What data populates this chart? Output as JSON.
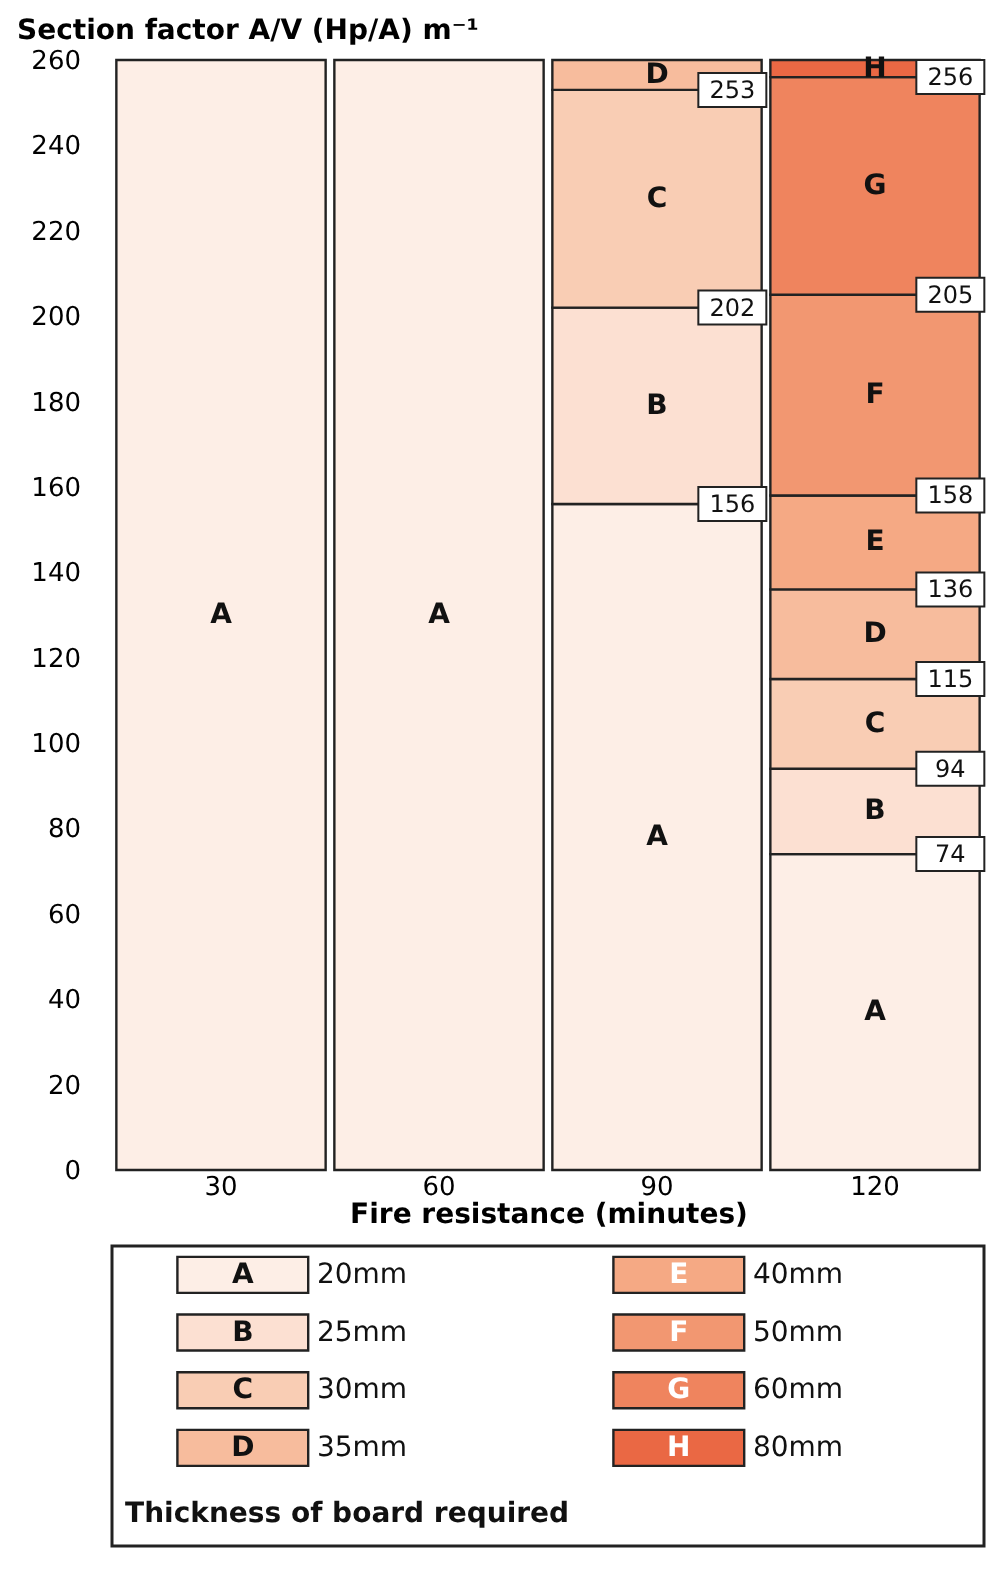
{
  "chart_data": {
    "type": "bar",
    "stacked": true,
    "xlabel": "Fire resistance (minutes)",
    "ylabel": "Section factor A/V (Hp/A) m⁻¹",
    "legend_title": "Thickness of board required",
    "legend": "bottom",
    "categories": [
      "30",
      "60",
      "90",
      "120"
    ],
    "series": [
      {
        "name": "20mm",
        "color": "#fdeee6",
        "values": [
          260,
          260,
          156,
          74
        ],
        "value_labels": [
          "A",
          "A",
          "A",
          "A"
        ]
      },
      {
        "name": "25mm",
        "color": "#fce0d2",
        "values": [
          null,
          null,
          46,
          20
        ],
        "value_labels": [
          null,
          null,
          "B",
          "B"
        ]
      },
      {
        "name": "30mm",
        "color": "#f9cdb4",
        "values": [
          null,
          null,
          51,
          21
        ],
        "value_labels": [
          null,
          null,
          "C",
          "C"
        ]
      },
      {
        "name": "35mm",
        "color": "#f7bc9d",
        "values": [
          null,
          null,
          7,
          21
        ],
        "value_labels": [
          null,
          null,
          "D",
          "D"
        ]
      },
      {
        "name": "40mm",
        "color": "#f5a984",
        "values": [
          null,
          null,
          null,
          22
        ],
        "value_labels": [
          null,
          null,
          null,
          "E"
        ]
      },
      {
        "name": "50mm",
        "color": "#f29771",
        "values": [
          null,
          null,
          null,
          47
        ],
        "value_labels": [
          null,
          null,
          null,
          "F"
        ]
      },
      {
        "name": "60mm",
        "color": "#ef845e",
        "values": [
          null,
          null,
          null,
          51
        ],
        "value_labels": [
          null,
          null,
          null,
          "G"
        ]
      },
      {
        "name": "80mm",
        "color": "#ea6844",
        "values": [
          null,
          null,
          null,
          4
        ],
        "value_labels": [
          null,
          null,
          null,
          "H"
        ]
      }
    ],
    "annotations": [
      {
        "text": "156",
        "x": "90",
        "y": 156
      },
      {
        "text": "202",
        "x": "90",
        "y": 202
      },
      {
        "text": "253",
        "x": "90",
        "y": 253
      },
      {
        "text": "74",
        "x": "120",
        "y": 74
      },
      {
        "text": "94",
        "x": "120",
        "y": 94
      },
      {
        "text": "115",
        "x": "120",
        "y": 115
      },
      {
        "text": "136",
        "x": "120",
        "y": 136
      },
      {
        "text": "158",
        "x": "120",
        "y": 158
      },
      {
        "text": "205",
        "x": "120",
        "y": 205
      },
      {
        "text": "256",
        "x": "120",
        "y": 256
      }
    ],
    "ylim": [
      0,
      260
    ],
    "yticks": [
      0,
      20,
      40,
      60,
      80,
      100,
      120,
      140,
      160,
      180,
      200,
      220,
      240,
      260
    ]
  }
}
